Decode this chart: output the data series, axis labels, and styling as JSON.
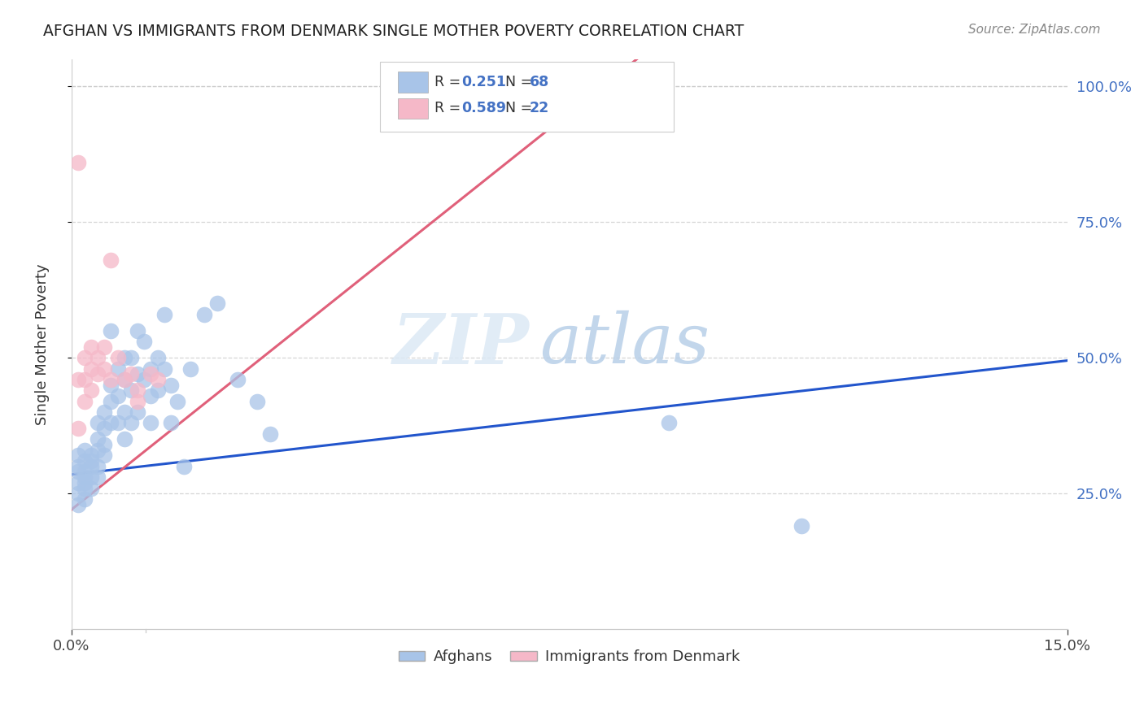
{
  "title": "AFGHAN VS IMMIGRANTS FROM DENMARK SINGLE MOTHER POVERTY CORRELATION CHART",
  "source": "Source: ZipAtlas.com",
  "ylabel": "Single Mother Poverty",
  "xlim": [
    0.0,
    0.15
  ],
  "ylim": [
    0.0,
    1.05
  ],
  "legend_labels": [
    "Afghans",
    "Immigrants from Denmark"
  ],
  "afghan_R": "0.251",
  "afghan_N": "68",
  "denmark_R": "0.589",
  "denmark_N": "22",
  "afghan_color": "#a8c4e8",
  "denmark_color": "#f5b8c8",
  "afghan_line_color": "#2255cc",
  "denmark_line_color": "#e0607a",
  "watermark_zip": "ZIP",
  "watermark_atlas": "atlas",
  "background_color": "#ffffff",
  "afghan_points_x": [
    0.001,
    0.001,
    0.001,
    0.001,
    0.001,
    0.001,
    0.002,
    0.002,
    0.002,
    0.002,
    0.002,
    0.002,
    0.002,
    0.003,
    0.003,
    0.003,
    0.003,
    0.003,
    0.004,
    0.004,
    0.004,
    0.004,
    0.004,
    0.005,
    0.005,
    0.005,
    0.005,
    0.006,
    0.006,
    0.006,
    0.006,
    0.007,
    0.007,
    0.007,
    0.008,
    0.008,
    0.008,
    0.008,
    0.009,
    0.009,
    0.009,
    0.01,
    0.01,
    0.01,
    0.011,
    0.011,
    0.012,
    0.012,
    0.012,
    0.013,
    0.013,
    0.014,
    0.014,
    0.015,
    0.015,
    0.016,
    0.017,
    0.018,
    0.02,
    0.022,
    0.025,
    0.028,
    0.03,
    0.09,
    0.11
  ],
  "afghan_points_y": [
    0.29,
    0.3,
    0.32,
    0.27,
    0.25,
    0.23,
    0.33,
    0.31,
    0.29,
    0.28,
    0.26,
    0.24,
    0.27,
    0.32,
    0.3,
    0.28,
    0.26,
    0.31,
    0.38,
    0.35,
    0.33,
    0.3,
    0.28,
    0.4,
    0.37,
    0.34,
    0.32,
    0.55,
    0.45,
    0.42,
    0.38,
    0.48,
    0.43,
    0.38,
    0.5,
    0.46,
    0.4,
    0.35,
    0.5,
    0.44,
    0.38,
    0.55,
    0.47,
    0.4,
    0.53,
    0.46,
    0.48,
    0.43,
    0.38,
    0.5,
    0.44,
    0.58,
    0.48,
    0.45,
    0.38,
    0.42,
    0.3,
    0.48,
    0.58,
    0.6,
    0.46,
    0.42,
    0.36,
    0.38,
    0.19
  ],
  "denmark_points_x": [
    0.001,
    0.001,
    0.001,
    0.002,
    0.002,
    0.002,
    0.003,
    0.003,
    0.003,
    0.004,
    0.004,
    0.005,
    0.005,
    0.006,
    0.006,
    0.007,
    0.008,
    0.009,
    0.01,
    0.01,
    0.012,
    0.013
  ],
  "denmark_points_y": [
    0.86,
    0.46,
    0.37,
    0.5,
    0.46,
    0.42,
    0.52,
    0.48,
    0.44,
    0.5,
    0.47,
    0.52,
    0.48,
    0.68,
    0.46,
    0.5,
    0.46,
    0.47,
    0.44,
    0.42,
    0.47,
    0.46
  ]
}
